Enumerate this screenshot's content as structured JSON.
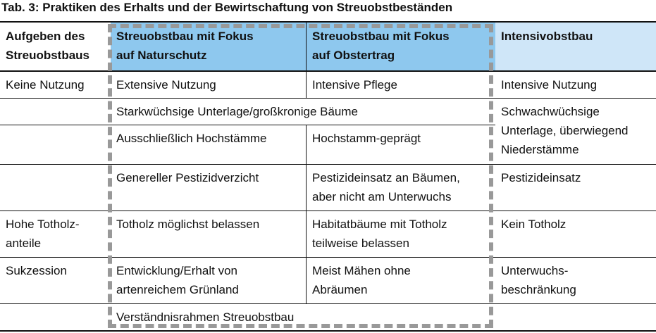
{
  "caption": "Tab. 3: Praktiken des Erhalts und der Bewirtschaftung von Streuobstbeständen",
  "colors": {
    "header_blue": "#8ec8ee",
    "header_light_blue": "#cfe6f8",
    "dash_gray": "#999999"
  },
  "headers": {
    "aufgeben": "Aufgeben des\nStreuobstbaus",
    "naturschutz": "Streuobstbau mit Fokus\nauf Naturschutz",
    "obstertrag": "Streuobstbau mit Fokus\nauf Obstertrag",
    "intensiv": "Intensivobstbau"
  },
  "rows": {
    "r1": {
      "aufgeben": "Keine Nutzung",
      "naturschutz": "Extensive Nutzung",
      "obstertrag": "Intensive Pflege",
      "intensiv": "Intensive Nutzung"
    },
    "r2": {
      "aufgeben": "",
      "streuobst": "Starkwüchsige Unterlage/großkronige Bäume",
      "intensiv": "Schwachwüchsige\nUnterlage, überwiegend\nNiederstämme"
    },
    "r3": {
      "aufgeben": "",
      "naturschutz": "Ausschließlich Hochstämme",
      "obstertrag": "Hochstamm-geprägt"
    },
    "r4": {
      "aufgeben": "",
      "naturschutz": "Genereller Pestizidverzicht",
      "obstertrag": "Pestizideinsatz an Bäumen,\naber nicht am Unterwuchs",
      "intensiv": "Pestizideinsatz"
    },
    "r5": {
      "aufgeben": "Hohe Totholz-\nanteile",
      "naturschutz": "Totholz möglichst belassen",
      "obstertrag": "Habitatbäume mit Totholz\nteilweise belassen",
      "intensiv": "Kein Totholz"
    },
    "r6": {
      "aufgeben": "Sukzession",
      "naturschutz": "Entwicklung/Erhalt von\nartenreichem Grünland",
      "obstertrag": "Meist Mähen ohne\nAbräumen",
      "intensiv": "Unterwuchs-\nbeschränkung"
    },
    "r7": {
      "aufgeben": "",
      "streuobst": "Verständnisrahmen Streuobstbau",
      "intensiv": ""
    }
  }
}
